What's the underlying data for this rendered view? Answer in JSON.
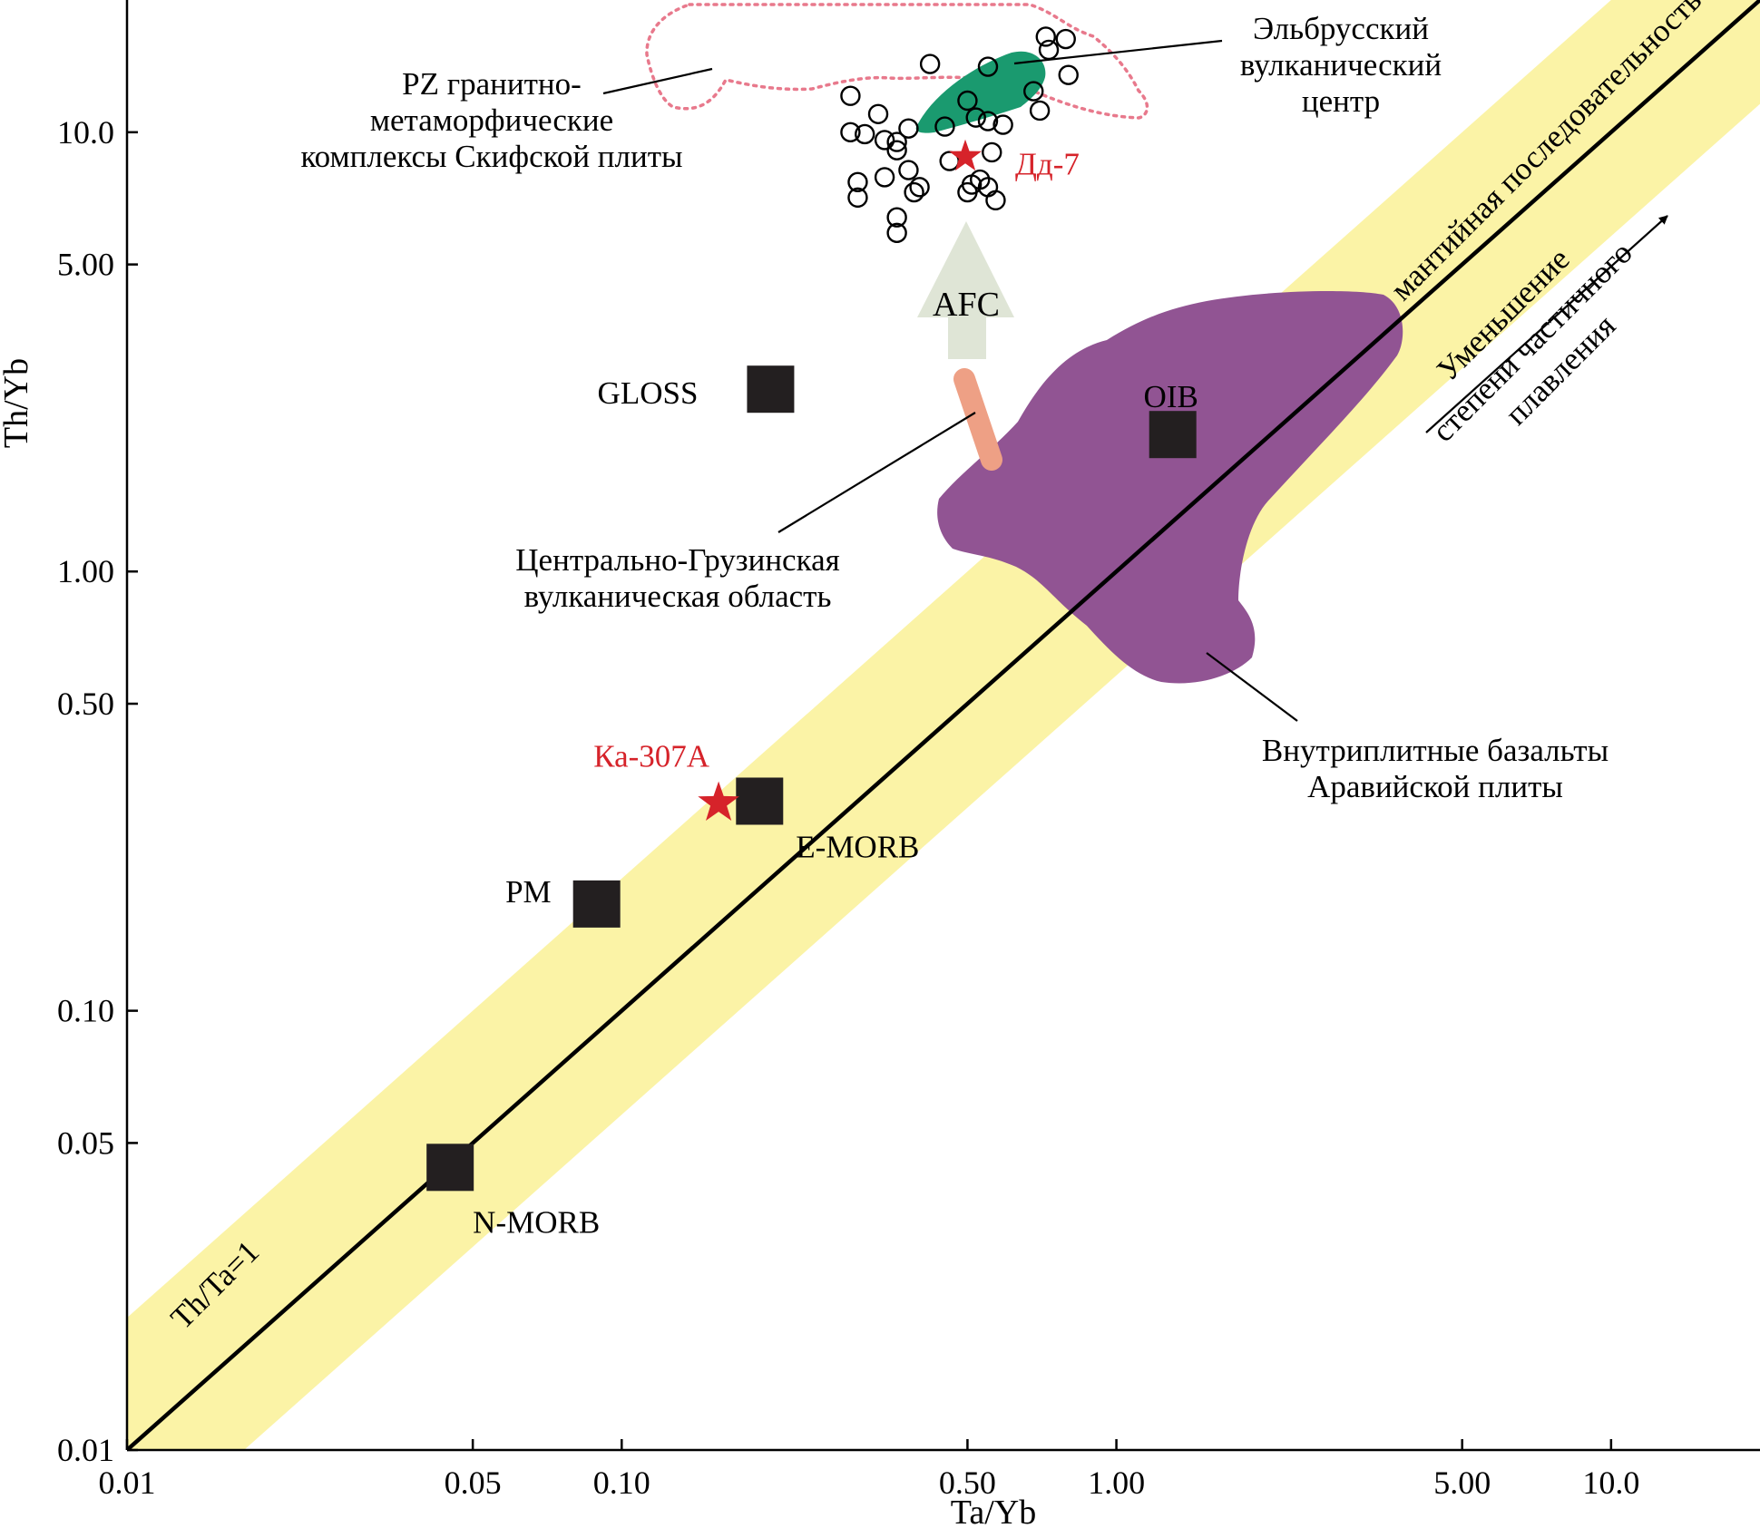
{
  "chart_data": {
    "type": "scatter",
    "title": "",
    "xlabel": "Ta/Yb",
    "ylabel": "Th/Yb",
    "xscale": "log",
    "yscale": "log",
    "xlim": [
      0.01,
      20
    ],
    "ylim": [
      0.01,
      20
    ],
    "x_ticks": [
      {
        "value": 0.01,
        "label": "0.01"
      },
      {
        "value": 0.05,
        "label": "0.05"
      },
      {
        "value": 0.1,
        "label": "0.10"
      },
      {
        "value": 0.5,
        "label": "0.50"
      },
      {
        "value": 1,
        "label": "1.00"
      },
      {
        "value": 5,
        "label": "5.00"
      },
      {
        "value": 10,
        "label": "10.0"
      }
    ],
    "y_ticks": [
      {
        "value": 0.01,
        "label": "0.01"
      },
      {
        "value": 0.05,
        "label": "0.05"
      },
      {
        "value": 0.1,
        "label": "0.10"
      },
      {
        "value": 0.5,
        "label": "0.50"
      },
      {
        "value": 1,
        "label": "1.00"
      },
      {
        "value": 5,
        "label": "5.00"
      },
      {
        "value": 10,
        "label": "10.0"
      }
    ],
    "reference_line": {
      "label": "Th/Ta=1",
      "ratio": 1
    },
    "mantle_array_label": "мантийная последовательность",
    "mantle_array_band": {
      "lower_ratio": 0.58,
      "upper_ratio": 2.0
    },
    "reference_compositions": [
      {
        "name": "N-MORB",
        "x": 0.045,
        "y": 0.044
      },
      {
        "name": "PM",
        "x": 0.089,
        "y": 0.175
      },
      {
        "name": "E-MORB",
        "x": 0.19,
        "y": 0.3
      },
      {
        "name": "GLOSS",
        "x": 0.2,
        "y": 2.6
      },
      {
        "name": "OIB",
        "x": 1.3,
        "y": 2.05
      }
    ],
    "samples": [
      {
        "name": "Ка-307А",
        "x": 0.157,
        "y": 0.297
      },
      {
        "name": "Дд-7",
        "x": 0.495,
        "y": 8.8
      }
    ],
    "elbrus_points": [
      {
        "x": 0.72,
        "y": 16.5
      },
      {
        "x": 0.79,
        "y": 16.3
      },
      {
        "x": 0.73,
        "y": 15.4
      },
      {
        "x": 0.42,
        "y": 14.3
      },
      {
        "x": 0.55,
        "y": 14.1
      },
      {
        "x": 0.8,
        "y": 13.5
      },
      {
        "x": 0.29,
        "y": 12.1
      },
      {
        "x": 0.68,
        "y": 12.4
      },
      {
        "x": 0.5,
        "y": 11.8
      },
      {
        "x": 0.7,
        "y": 11.2
      },
      {
        "x": 0.33,
        "y": 11.0
      },
      {
        "x": 0.52,
        "y": 10.8
      },
      {
        "x": 0.55,
        "y": 10.6
      },
      {
        "x": 0.45,
        "y": 10.3
      },
      {
        "x": 0.38,
        "y": 10.2
      },
      {
        "x": 0.59,
        "y": 10.4
      },
      {
        "x": 0.29,
        "y": 10.0
      },
      {
        "x": 0.34,
        "y": 9.6
      },
      {
        "x": 0.36,
        "y": 9.5
      },
      {
        "x": 0.31,
        "y": 9.9
      },
      {
        "x": 0.36,
        "y": 9.1
      },
      {
        "x": 0.56,
        "y": 9.0
      },
      {
        "x": 0.46,
        "y": 8.6
      },
      {
        "x": 0.38,
        "y": 8.2
      },
      {
        "x": 0.34,
        "y": 7.9
      },
      {
        "x": 0.3,
        "y": 7.7
      },
      {
        "x": 0.53,
        "y": 7.8
      },
      {
        "x": 0.51,
        "y": 7.6
      },
      {
        "x": 0.55,
        "y": 7.5
      },
      {
        "x": 0.4,
        "y": 7.5
      },
      {
        "x": 0.39,
        "y": 7.3
      },
      {
        "x": 0.5,
        "y": 7.3
      },
      {
        "x": 0.3,
        "y": 7.1
      },
      {
        "x": 0.57,
        "y": 7.0
      },
      {
        "x": 0.36,
        "y": 6.4
      },
      {
        "x": 0.36,
        "y": 5.9
      }
    ],
    "fields": [
      {
        "name": "PZ гранитно-метаморфические комплексы Скифской плиты",
        "style": "dotted-outline"
      },
      {
        "name": "Эльбрусский вулканический центр",
        "style": "filled"
      },
      {
        "name": "Центрально-Грузинская вулканическая область",
        "style": "filled"
      },
      {
        "name": "Внутриплитные базальты Аравийской плиты",
        "style": "filled"
      }
    ],
    "colors": {
      "band": "#fbf3a6",
      "arabian_field": "#915493",
      "elbrus_field": "#1a9a6f",
      "georgia_field": "#eea085",
      "pz_outline": "#e8798c",
      "afc_arrow": "#dfe5d6",
      "star": "#d6232a",
      "square": "#231f20"
    }
  },
  "labels": {
    "pz_line1": "PZ гранитно-",
    "pz_line2": "метаморфические",
    "pz_line3": "комплексы Скифской плиты",
    "elbrus_line1": "Эльбрусский",
    "elbrus_line2": "вулканический",
    "elbrus_line3": "центр",
    "georgia_line1": "Центрально-Грузинская",
    "georgia_line2": "вулканическая область",
    "arabia_line1": "Внутриплитные базальты",
    "arabia_line2": "Аравийской плиты",
    "afc": "AFC",
    "melt_line1": "Уменьшение",
    "melt_line2": "степени частичного",
    "melt_line3": "плавления"
  }
}
